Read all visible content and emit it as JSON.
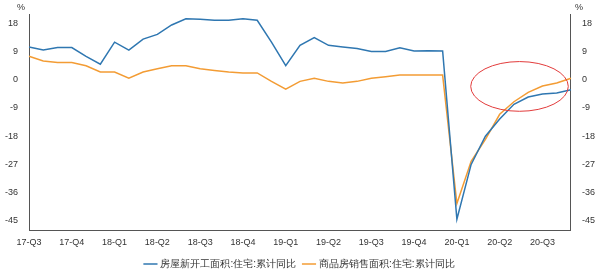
{
  "chart_data": {
    "type": "line",
    "categories": [
      "17-Q3",
      null,
      null,
      "17-Q4",
      null,
      null,
      "18-Q1",
      null,
      null,
      "18-Q2",
      null,
      null,
      "18-Q3",
      null,
      null,
      "18-Q4",
      null,
      null,
      "19-Q1",
      null,
      null,
      "19-Q2",
      null,
      null,
      "19-Q3",
      null,
      null,
      "19-Q4",
      null,
      null,
      "20-Q1",
      null,
      null,
      "20-Q2",
      null,
      null,
      "20-Q3",
      null,
      null
    ],
    "series": [
      {
        "name": "房屋新开工面积:住宅:累计同比",
        "color": "#2f77b1",
        "values": [
          10.5,
          9.5,
          10.3,
          10.3,
          7.5,
          5.0,
          12.0,
          9.5,
          13.0,
          14.5,
          17.5,
          19.5,
          19.3,
          19.0,
          19.0,
          19.5,
          19.0,
          12.0,
          4.5,
          11.0,
          13.5,
          11.0,
          10.5,
          10.0,
          9.0,
          9.0,
          10.2,
          9.2,
          9.3,
          9.2,
          -44.5,
          -27.0,
          -18.0,
          -12.5,
          -7.8,
          -5.5,
          -4.5,
          -4.2,
          -3.2
        ]
      },
      {
        "name": "商品房销售面积:住宅:累计同比",
        "color": "#f39c34",
        "values": [
          7.5,
          6.0,
          5.5,
          5.5,
          4.5,
          2.5,
          2.5,
          0.5,
          2.5,
          3.5,
          4.5,
          4.5,
          3.5,
          3.0,
          2.5,
          2.2,
          2.2,
          -0.5,
          -3.0,
          -0.5,
          0.5,
          -0.5,
          -1.0,
          -0.5,
          0.5,
          1.0,
          1.5,
          1.5,
          1.5,
          1.5,
          -39.5,
          -26.0,
          -19.0,
          -11.0,
          -7.0,
          -4.0,
          -2.0,
          -1.0,
          0.5
        ]
      }
    ],
    "ylabel": "%",
    "y2label": "%",
    "ylim": [
      -48,
      21
    ],
    "yticks": [
      -45,
      -36,
      -27,
      -18,
      -9,
      0,
      9,
      18
    ],
    "y2lim": [
      -48,
      21
    ],
    "y2ticks": [
      -45,
      -36,
      -27,
      -18,
      -9,
      0,
      9,
      18
    ],
    "grid": false,
    "legend": "bottom"
  }
}
